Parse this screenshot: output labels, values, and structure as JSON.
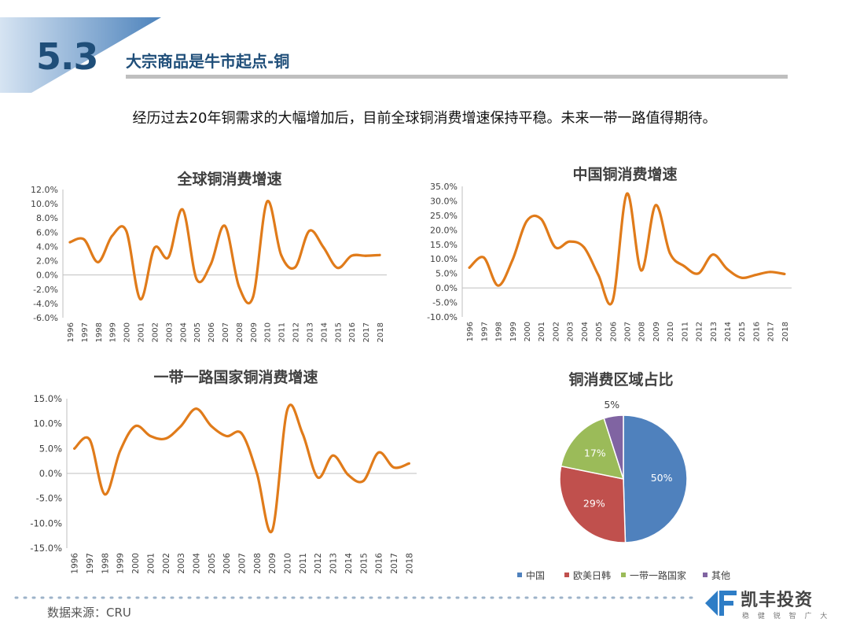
{
  "header": {
    "section_number": "5.3",
    "title": "大宗商品是牛市起点-铜",
    "subtitle": "经历过去20年铜需求的大幅增加后，目前全球铜消费增速保持平稳。未来一带一路值得期待。"
  },
  "footer": {
    "source": "数据来源：CRU",
    "logo_name": "凯丰投资",
    "logo_tagline": "稳 健 锐 智 广 大"
  },
  "colors": {
    "line": "#e07b1a",
    "brand": "#1f4e79"
  },
  "chart_data": [
    {
      "type": "line",
      "title": "全球铜消费增速",
      "x": [
        "1996",
        "1997",
        "1998",
        "1999",
        "2000",
        "2001",
        "2002",
        "2003",
        "2004",
        "2005",
        "2006",
        "2007",
        "2008",
        "2009",
        "2010",
        "2011",
        "2012",
        "2013",
        "2014",
        "2015",
        "2016",
        "2017",
        "2018"
      ],
      "values": [
        4.6,
        5.0,
        1.8,
        5.5,
        6.2,
        -3.4,
        3.8,
        2.5,
        9.2,
        -0.6,
        1.5,
        6.9,
        -1.6,
        -3.1,
        10.3,
        2.8,
        1.1,
        6.2,
        3.9,
        1.0,
        2.7,
        2.7,
        2.8
      ],
      "yticks": [
        "12.0%",
        "10.0%",
        "8.0%",
        "6.0%",
        "4.0%",
        "2.0%",
        "0.0%",
        "-2.0%",
        "-4.0%",
        "-6.0%"
      ],
      "ylim": [
        -6,
        12
      ],
      "grid": false
    },
    {
      "type": "line",
      "title": "中国铜消费增速",
      "x": [
        "1996",
        "1997",
        "1998",
        "1999",
        "2000",
        "2001",
        "2002",
        "2003",
        "2004",
        "2005",
        "2006",
        "2007",
        "2008",
        "2009",
        "2010",
        "2011",
        "2012",
        "2013",
        "2014",
        "2015",
        "2016",
        "2017",
        "2018"
      ],
      "values": [
        7.0,
        10.5,
        0.8,
        9.5,
        23.0,
        23.8,
        14.0,
        16.0,
        14.0,
        4.5,
        -4.5,
        32.5,
        6.0,
        28.5,
        12.0,
        7.5,
        5.0,
        11.5,
        6.5,
        3.5,
        4.5,
        5.5,
        4.8
      ],
      "yticks": [
        "35.0%",
        "30.0%",
        "25.0%",
        "20.0%",
        "15.0%",
        "10.0%",
        "5.0%",
        "0.0%",
        "-5.0%",
        "-10.0%"
      ],
      "ylim": [
        -10,
        35
      ],
      "grid": false
    },
    {
      "type": "line",
      "title": "一带一路国家铜消费增速",
      "x": [
        "1996",
        "1997",
        "1998",
        "1999",
        "2000",
        "2001",
        "2002",
        "2003",
        "2004",
        "2005",
        "2006",
        "2007",
        "2008",
        "2009",
        "2010",
        "2011",
        "2012",
        "2013",
        "2014",
        "2015",
        "2016",
        "2017",
        "2018"
      ],
      "values": [
        5.0,
        6.8,
        -4.2,
        4.5,
        9.5,
        7.5,
        7.0,
        9.5,
        13.0,
        9.5,
        7.5,
        8.0,
        0.0,
        -11.5,
        12.8,
        8.0,
        -0.8,
        3.6,
        -0.3,
        -1.5,
        4.2,
        1.2,
        2.0
      ],
      "yticks": [
        "15.0%",
        "10.0%",
        "5.0%",
        "0.0%",
        "-5.0%",
        "-10.0%",
        "-15.0%"
      ],
      "ylim": [
        -15,
        15
      ],
      "grid": false
    },
    {
      "type": "pie",
      "title": "铜消费区域占比",
      "categories": [
        "中国",
        "欧美日韩",
        "一带一路国家",
        "其他"
      ],
      "values": [
        50,
        29,
        17,
        5
      ],
      "labels": [
        "50%",
        "29%",
        "17%",
        "5%"
      ],
      "colors": [
        "#4f81bd",
        "#c0504d",
        "#9bbb59",
        "#8064a2"
      ],
      "legend": "bottom"
    }
  ]
}
